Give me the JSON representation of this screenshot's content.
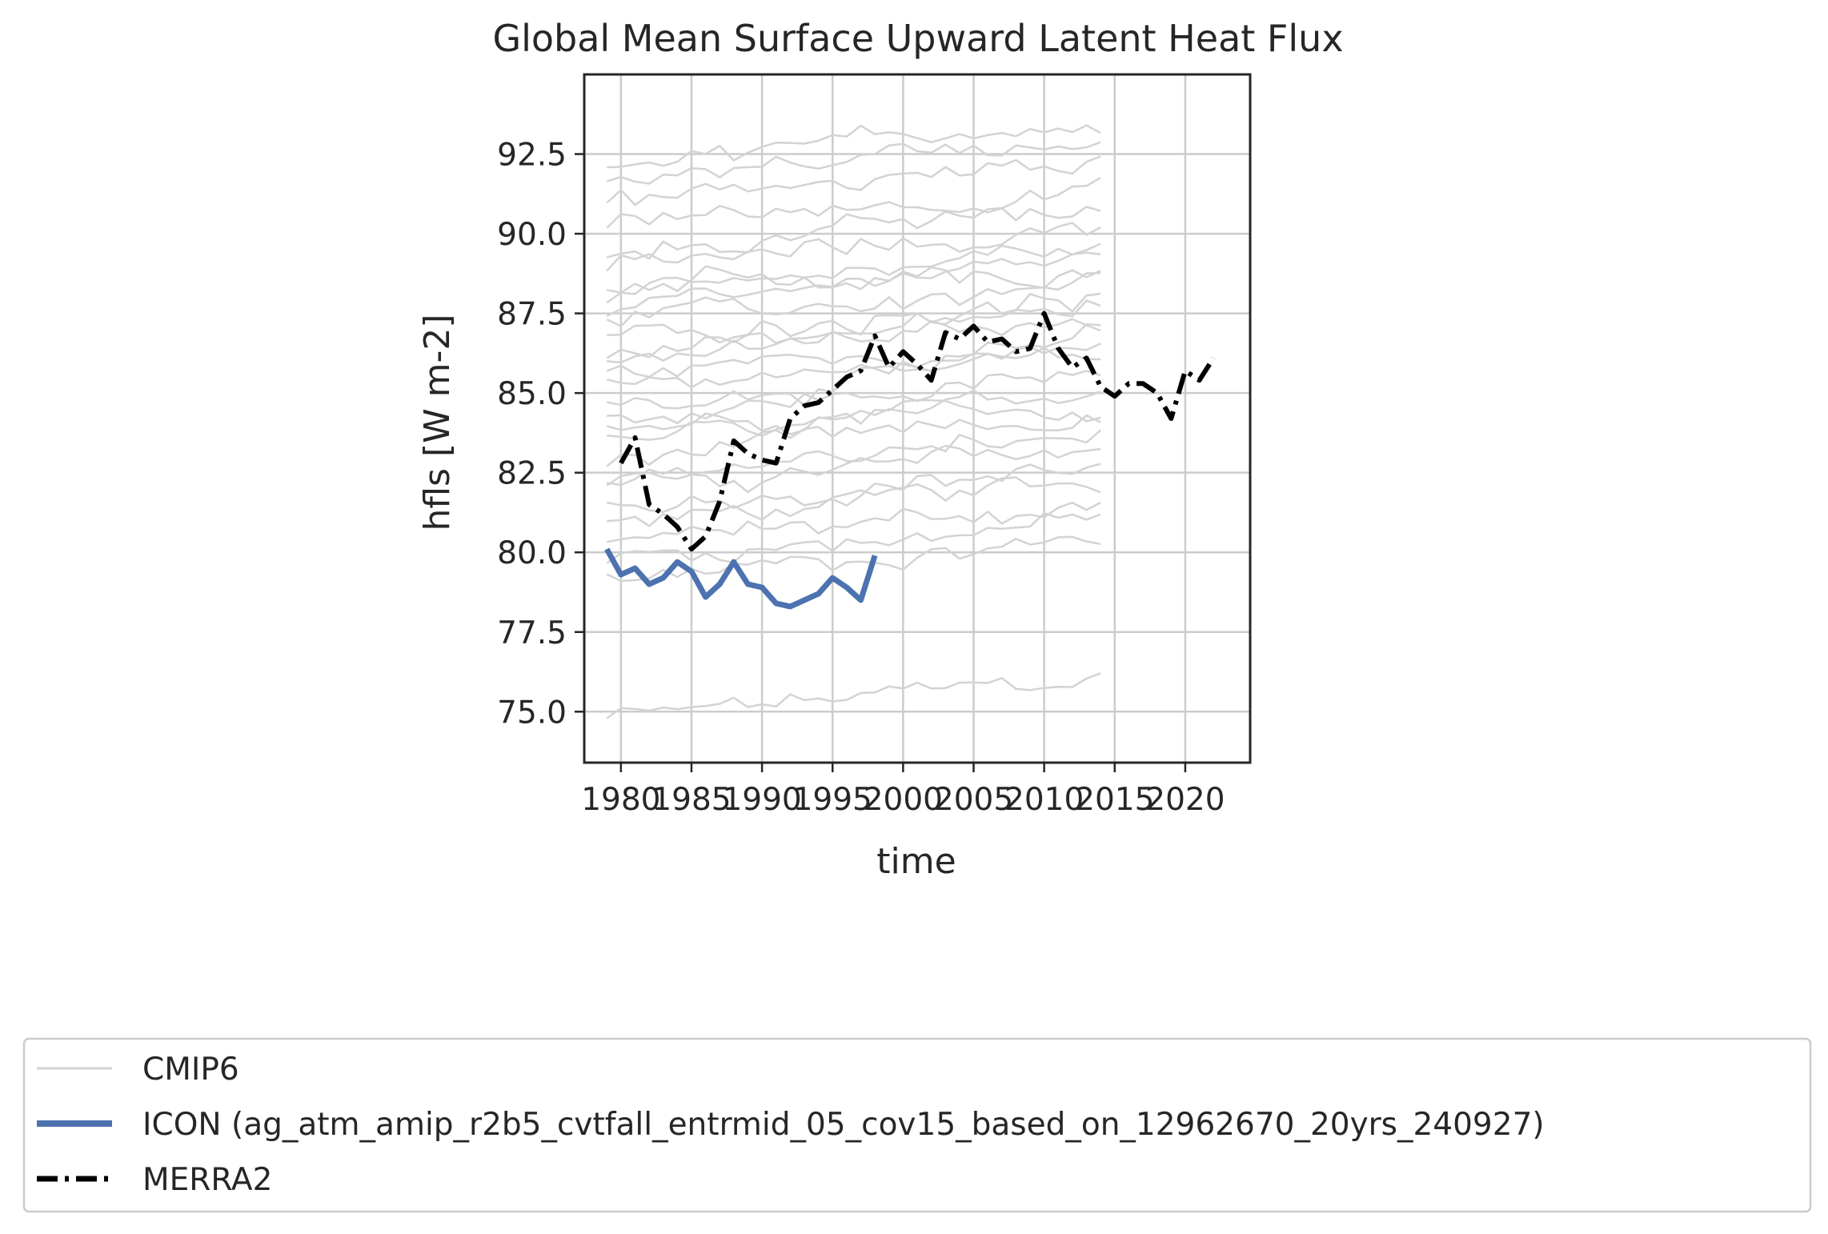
{
  "chart_data": {
    "type": "line",
    "title": "Global Mean Surface Upward Latent Heat Flux",
    "xlabel": "time",
    "ylabel": "hfls [W m-2]",
    "xlim": [
      1977.4,
      2024.6
    ],
    "ylim": [
      73.4,
      95.0
    ],
    "xticks": [
      1980,
      1985,
      1990,
      1995,
      2000,
      2005,
      2010,
      2015,
      2020
    ],
    "xtick_labels": [
      "1980",
      "1985",
      "1990",
      "1995",
      "2000",
      "2005",
      "2010",
      "2015",
      "2020"
    ],
    "yticks": [
      75.0,
      77.5,
      80.0,
      82.5,
      85.0,
      87.5,
      90.0,
      92.5
    ],
    "ytick_labels": [
      "75.0",
      "77.5",
      "80.0",
      "82.5",
      "85.0",
      "87.5",
      "90.0",
      "92.5"
    ],
    "grid": true,
    "legend_position": "below plot",
    "cmip6_levels": [
      74.8,
      79.2,
      79.8,
      80.3,
      80.9,
      81.5,
      82.0,
      82.4,
      82.9,
      83.4,
      83.9,
      84.3,
      84.8,
      85.2,
      85.6,
      86.0,
      86.4,
      86.8,
      87.2,
      87.6,
      88.0,
      88.4,
      88.9,
      89.5,
      90.3,
      91.0,
      91.8,
      92.3
    ],
    "series": [
      {
        "name": "CMIP6",
        "color": "#d3d3d3",
        "style": "solid-thin",
        "x_range": [
          1979,
          2014
        ]
      },
      {
        "name": "ICON (ag_atm_amip_r2b5_cvtfall_entrmid_05_cov15_based_on_12962670_20yrs_240927)",
        "color": "#4c72b0",
        "style": "solid-thick",
        "x": [
          1979,
          1980,
          1981,
          1982,
          1983,
          1984,
          1985,
          1986,
          1987,
          1988,
          1989,
          1990,
          1991,
          1992,
          1993,
          1994,
          1995,
          1996,
          1997,
          1998
        ],
        "y": [
          80.1,
          79.3,
          79.5,
          79.0,
          79.2,
          79.7,
          79.4,
          78.6,
          79.0,
          79.7,
          79.0,
          78.9,
          78.4,
          78.3,
          78.5,
          78.7,
          79.2,
          78.9,
          78.5,
          79.9
        ]
      },
      {
        "name": "MERRA2",
        "color": "#000000",
        "style": "dashdot",
        "x": [
          1980,
          1981,
          1982,
          1983,
          1984,
          1985,
          1986,
          1987,
          1988,
          1989,
          1990,
          1991,
          1992,
          1993,
          1994,
          1995,
          1996,
          1997,
          1998,
          1999,
          2000,
          2001,
          2002,
          2003,
          2004,
          2005,
          2006,
          2007,
          2008,
          2009,
          2010,
          2011,
          2012,
          2013,
          2014,
          2015,
          2016,
          2017,
          2018,
          2019,
          2020,
          2021,
          2022
        ],
        "y": [
          82.8,
          83.6,
          81.5,
          81.2,
          80.8,
          80.1,
          80.5,
          81.6,
          83.5,
          83.1,
          82.9,
          82.8,
          84.2,
          84.6,
          84.7,
          85.1,
          85.5,
          85.7,
          86.8,
          85.8,
          86.3,
          85.9,
          85.4,
          86.9,
          86.7,
          87.1,
          86.6,
          86.7,
          86.3,
          86.4,
          87.5,
          86.4,
          85.8,
          86.1,
          85.2,
          84.9,
          85.3,
          85.3,
          85.0,
          84.2,
          85.7,
          85.4,
          86.1
        ]
      }
    ]
  }
}
